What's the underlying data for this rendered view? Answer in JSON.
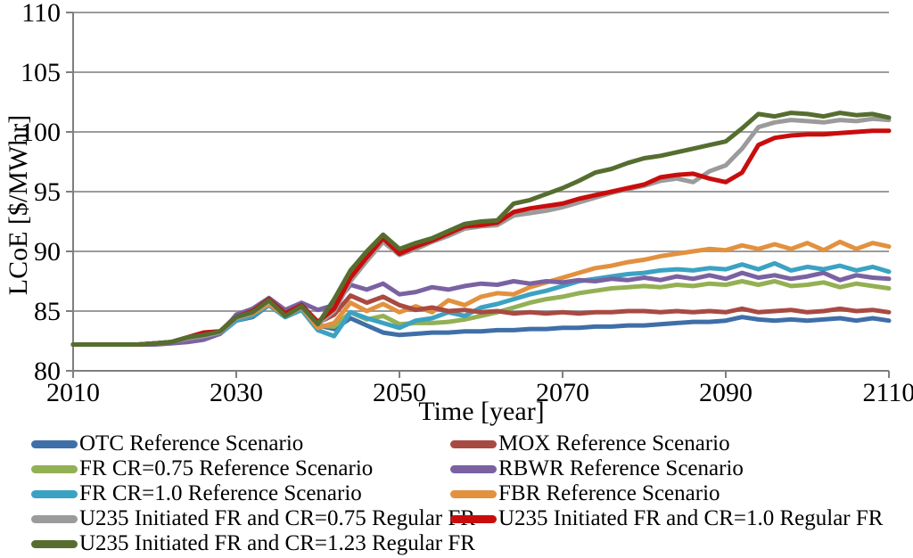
{
  "chart_data": {
    "type": "line",
    "title": "",
    "xlabel": "Time [year]",
    "ylabel": "LCoE [$/MWhr]",
    "xlim": [
      2010,
      2110
    ],
    "ylim": [
      80,
      110
    ],
    "x_ticks": [
      2010,
      2030,
      2050,
      2070,
      2090,
      2110
    ],
    "y_ticks": [
      80,
      85,
      90,
      95,
      100,
      105,
      110
    ],
    "grid": "horizontal-only",
    "legend_position": "bottom-two-columns",
    "x": [
      2010,
      2012,
      2014,
      2016,
      2018,
      2020,
      2022,
      2024,
      2026,
      2028,
      2030,
      2032,
      2034,
      2036,
      2038,
      2040,
      2042,
      2044,
      2046,
      2048,
      2050,
      2052,
      2054,
      2056,
      2058,
      2060,
      2062,
      2064,
      2066,
      2068,
      2070,
      2072,
      2074,
      2076,
      2078,
      2080,
      2082,
      2084,
      2086,
      2088,
      2090,
      2092,
      2094,
      2096,
      2098,
      2100,
      2102,
      2104,
      2106,
      2108,
      2110
    ],
    "series": [
      {
        "name": "OTC Reference Scenario",
        "color": "#3F6FA8",
        "values": [
          82.2,
          82.2,
          82.2,
          82.2,
          82.2,
          82.3,
          82.4,
          82.6,
          82.8,
          83.1,
          84.2,
          84.5,
          85.5,
          84.5,
          85.1,
          83.8,
          83.5,
          84.4,
          83.8,
          83.2,
          83.0,
          83.1,
          83.2,
          83.2,
          83.3,
          83.3,
          83.4,
          83.4,
          83.5,
          83.5,
          83.6,
          83.6,
          83.7,
          83.7,
          83.8,
          83.8,
          83.9,
          84.0,
          84.1,
          84.1,
          84.2,
          84.5,
          84.3,
          84.2,
          84.3,
          84.2,
          84.3,
          84.4,
          84.2,
          84.4,
          84.2
        ]
      },
      {
        "name": "FR CR=0.75 Reference Scenario",
        "color": "#94B054",
        "values": [
          82.2,
          82.2,
          82.2,
          82.2,
          82.2,
          82.3,
          82.4,
          82.6,
          82.9,
          83.2,
          84.3,
          84.7,
          85.7,
          84.6,
          85.2,
          83.8,
          83.7,
          84.9,
          84.3,
          84.6,
          83.9,
          84.0,
          84.0,
          84.1,
          84.3,
          84.6,
          84.9,
          85.3,
          85.7,
          86.0,
          86.2,
          86.5,
          86.7,
          86.9,
          87.0,
          87.1,
          87.0,
          87.2,
          87.1,
          87.3,
          87.2,
          87.5,
          87.2,
          87.5,
          87.1,
          87.2,
          87.4,
          87.0,
          87.3,
          87.1,
          86.9
        ]
      },
      {
        "name": "FR CR=1.0 Reference Scenario",
        "color": "#3BA2C2",
        "values": [
          82.2,
          82.2,
          82.2,
          82.2,
          82.2,
          82.3,
          82.4,
          82.6,
          82.8,
          83.1,
          84.2,
          84.6,
          85.5,
          84.5,
          85.1,
          83.4,
          82.9,
          84.9,
          84.4,
          84.0,
          83.6,
          84.2,
          84.4,
          84.9,
          84.6,
          85.3,
          85.6,
          86.0,
          86.4,
          86.7,
          87.1,
          87.5,
          87.7,
          87.9,
          88.1,
          88.2,
          88.4,
          88.5,
          88.4,
          88.6,
          88.5,
          88.9,
          88.5,
          89.0,
          88.4,
          88.7,
          88.5,
          88.8,
          88.4,
          88.7,
          88.3
        ]
      },
      {
        "name": "FBR Reference Scenario",
        "color": "#E2913F",
        "values": [
          82.2,
          82.2,
          82.2,
          82.2,
          82.2,
          82.3,
          82.4,
          82.7,
          83.0,
          83.2,
          84.4,
          84.8,
          85.6,
          84.6,
          85.3,
          83.6,
          84.0,
          85.7,
          85.0,
          85.6,
          84.9,
          85.4,
          84.9,
          85.9,
          85.5,
          86.2,
          86.5,
          86.4,
          87.0,
          87.4,
          87.8,
          88.2,
          88.6,
          88.8,
          89.1,
          89.3,
          89.6,
          89.8,
          90.0,
          90.2,
          90.1,
          90.5,
          90.2,
          90.6,
          90.2,
          90.7,
          90.1,
          90.8,
          90.2,
          90.7,
          90.4
        ]
      },
      {
        "name": "MOX Reference Scenario",
        "color": "#A94A42",
        "values": [
          82.2,
          82.2,
          82.2,
          82.2,
          82.2,
          82.3,
          82.4,
          82.8,
          83.2,
          83.3,
          84.6,
          85.0,
          86.1,
          84.8,
          85.5,
          84.0,
          84.7,
          86.3,
          85.7,
          86.2,
          85.5,
          85.1,
          85.3,
          85.0,
          85.1,
          84.9,
          85.0,
          84.8,
          84.9,
          84.8,
          84.9,
          84.8,
          84.9,
          84.9,
          85.0,
          85.0,
          84.9,
          85.0,
          84.9,
          85.0,
          84.9,
          85.2,
          84.9,
          85.0,
          85.1,
          84.9,
          85.0,
          85.2,
          85.0,
          85.1,
          84.9
        ]
      },
      {
        "name": "RBWR Reference Scenario",
        "color": "#7A62A2",
        "values": [
          82.2,
          82.2,
          82.2,
          82.2,
          82.2,
          82.2,
          82.3,
          82.4,
          82.6,
          83.1,
          84.7,
          85.2,
          86.1,
          85.1,
          85.7,
          85.1,
          85.5,
          87.2,
          86.8,
          87.3,
          86.4,
          86.6,
          87.0,
          86.8,
          87.1,
          87.3,
          87.2,
          87.5,
          87.3,
          87.5,
          87.4,
          87.6,
          87.5,
          87.7,
          87.6,
          87.8,
          87.6,
          87.9,
          87.7,
          88.0,
          87.7,
          88.2,
          87.8,
          88.0,
          87.7,
          87.9,
          88.2,
          87.6,
          88.0,
          87.8,
          87.7
        ]
      },
      {
        "name": "U235 Initiated FR and CR=0.75 Regular FR",
        "color": "#9B9B9B",
        "values": [
          82.2,
          82.2,
          82.2,
          82.2,
          82.2,
          82.3,
          82.4,
          82.7,
          82.9,
          83.2,
          84.4,
          84.9,
          85.8,
          84.7,
          85.3,
          83.9,
          85.0,
          87.5,
          89.2,
          90.8,
          89.7,
          90.2,
          90.8,
          91.3,
          91.9,
          92.1,
          92.2,
          93.0,
          93.2,
          93.4,
          93.7,
          94.1,
          94.5,
          94.9,
          95.2,
          95.5,
          95.9,
          96.1,
          95.8,
          96.7,
          97.2,
          98.6,
          100.4,
          100.8,
          101.0,
          100.9,
          100.8,
          101.0,
          100.9,
          101.1,
          101.0
        ]
      },
      {
        "name": "U235 Initiated FR and CR=1.0 Regular FR",
        "color": "#C90D0D",
        "values": [
          82.2,
          82.2,
          82.2,
          82.2,
          82.2,
          82.3,
          82.4,
          82.8,
          83.2,
          83.3,
          84.5,
          85.0,
          86.0,
          84.8,
          85.5,
          84.1,
          85.2,
          87.8,
          89.5,
          91.1,
          89.8,
          90.4,
          90.9,
          91.5,
          92.1,
          92.2,
          92.4,
          93.3,
          93.6,
          93.8,
          94.0,
          94.4,
          94.7,
          95.0,
          95.3,
          95.6,
          96.2,
          96.4,
          96.5,
          96.1,
          95.8,
          96.6,
          98.9,
          99.5,
          99.7,
          99.8,
          99.8,
          99.9,
          100.0,
          100.1,
          100.1
        ]
      },
      {
        "name": "U235 Initiated FR and CR=1.23 Regular FR",
        "color": "#556E2F",
        "values": [
          82.2,
          82.2,
          82.2,
          82.2,
          82.2,
          82.3,
          82.4,
          82.8,
          83.0,
          83.3,
          84.5,
          84.9,
          85.9,
          84.6,
          85.4,
          83.9,
          86.0,
          88.4,
          90.0,
          91.4,
          90.2,
          90.7,
          91.1,
          91.7,
          92.3,
          92.5,
          92.6,
          94.0,
          94.3,
          94.8,
          95.3,
          95.9,
          96.6,
          96.9,
          97.4,
          97.8,
          98.0,
          98.3,
          98.6,
          98.9,
          99.2,
          100.3,
          101.5,
          101.3,
          101.6,
          101.5,
          101.3,
          101.6,
          101.4,
          101.5,
          101.2
        ]
      }
    ]
  },
  "legend": {
    "left": [
      {
        "label": "OTC Reference Scenario",
        "color": "#3F6FA8"
      },
      {
        "label": "FR CR=0.75 Reference Scenario",
        "color": "#94B054"
      },
      {
        "label": "FR CR=1.0 Reference Scenario",
        "color": "#3BA2C2"
      },
      {
        "label": "U235 Initiated FR and CR=0.75 Regular FR",
        "color": "#9B9B9B"
      },
      {
        "label": "U235 Initiated FR and CR=1.23 Regular FR",
        "color": "#556E2F"
      }
    ],
    "right": [
      {
        "label": "MOX Reference Scenario",
        "color": "#A94A42"
      },
      {
        "label": "RBWR Reference Scenario",
        "color": "#7A62A2"
      },
      {
        "label": "FBR Reference Scenario",
        "color": "#E2913F"
      },
      {
        "label": "U235 Initiated FR and CR=1.0 Regular FR",
        "color": "#C90D0D"
      }
    ]
  },
  "colors": {
    "axis": "#7F7F7F",
    "gridline": "#9C9C9C",
    "text": "#000000",
    "background": "#FFFFFF"
  }
}
